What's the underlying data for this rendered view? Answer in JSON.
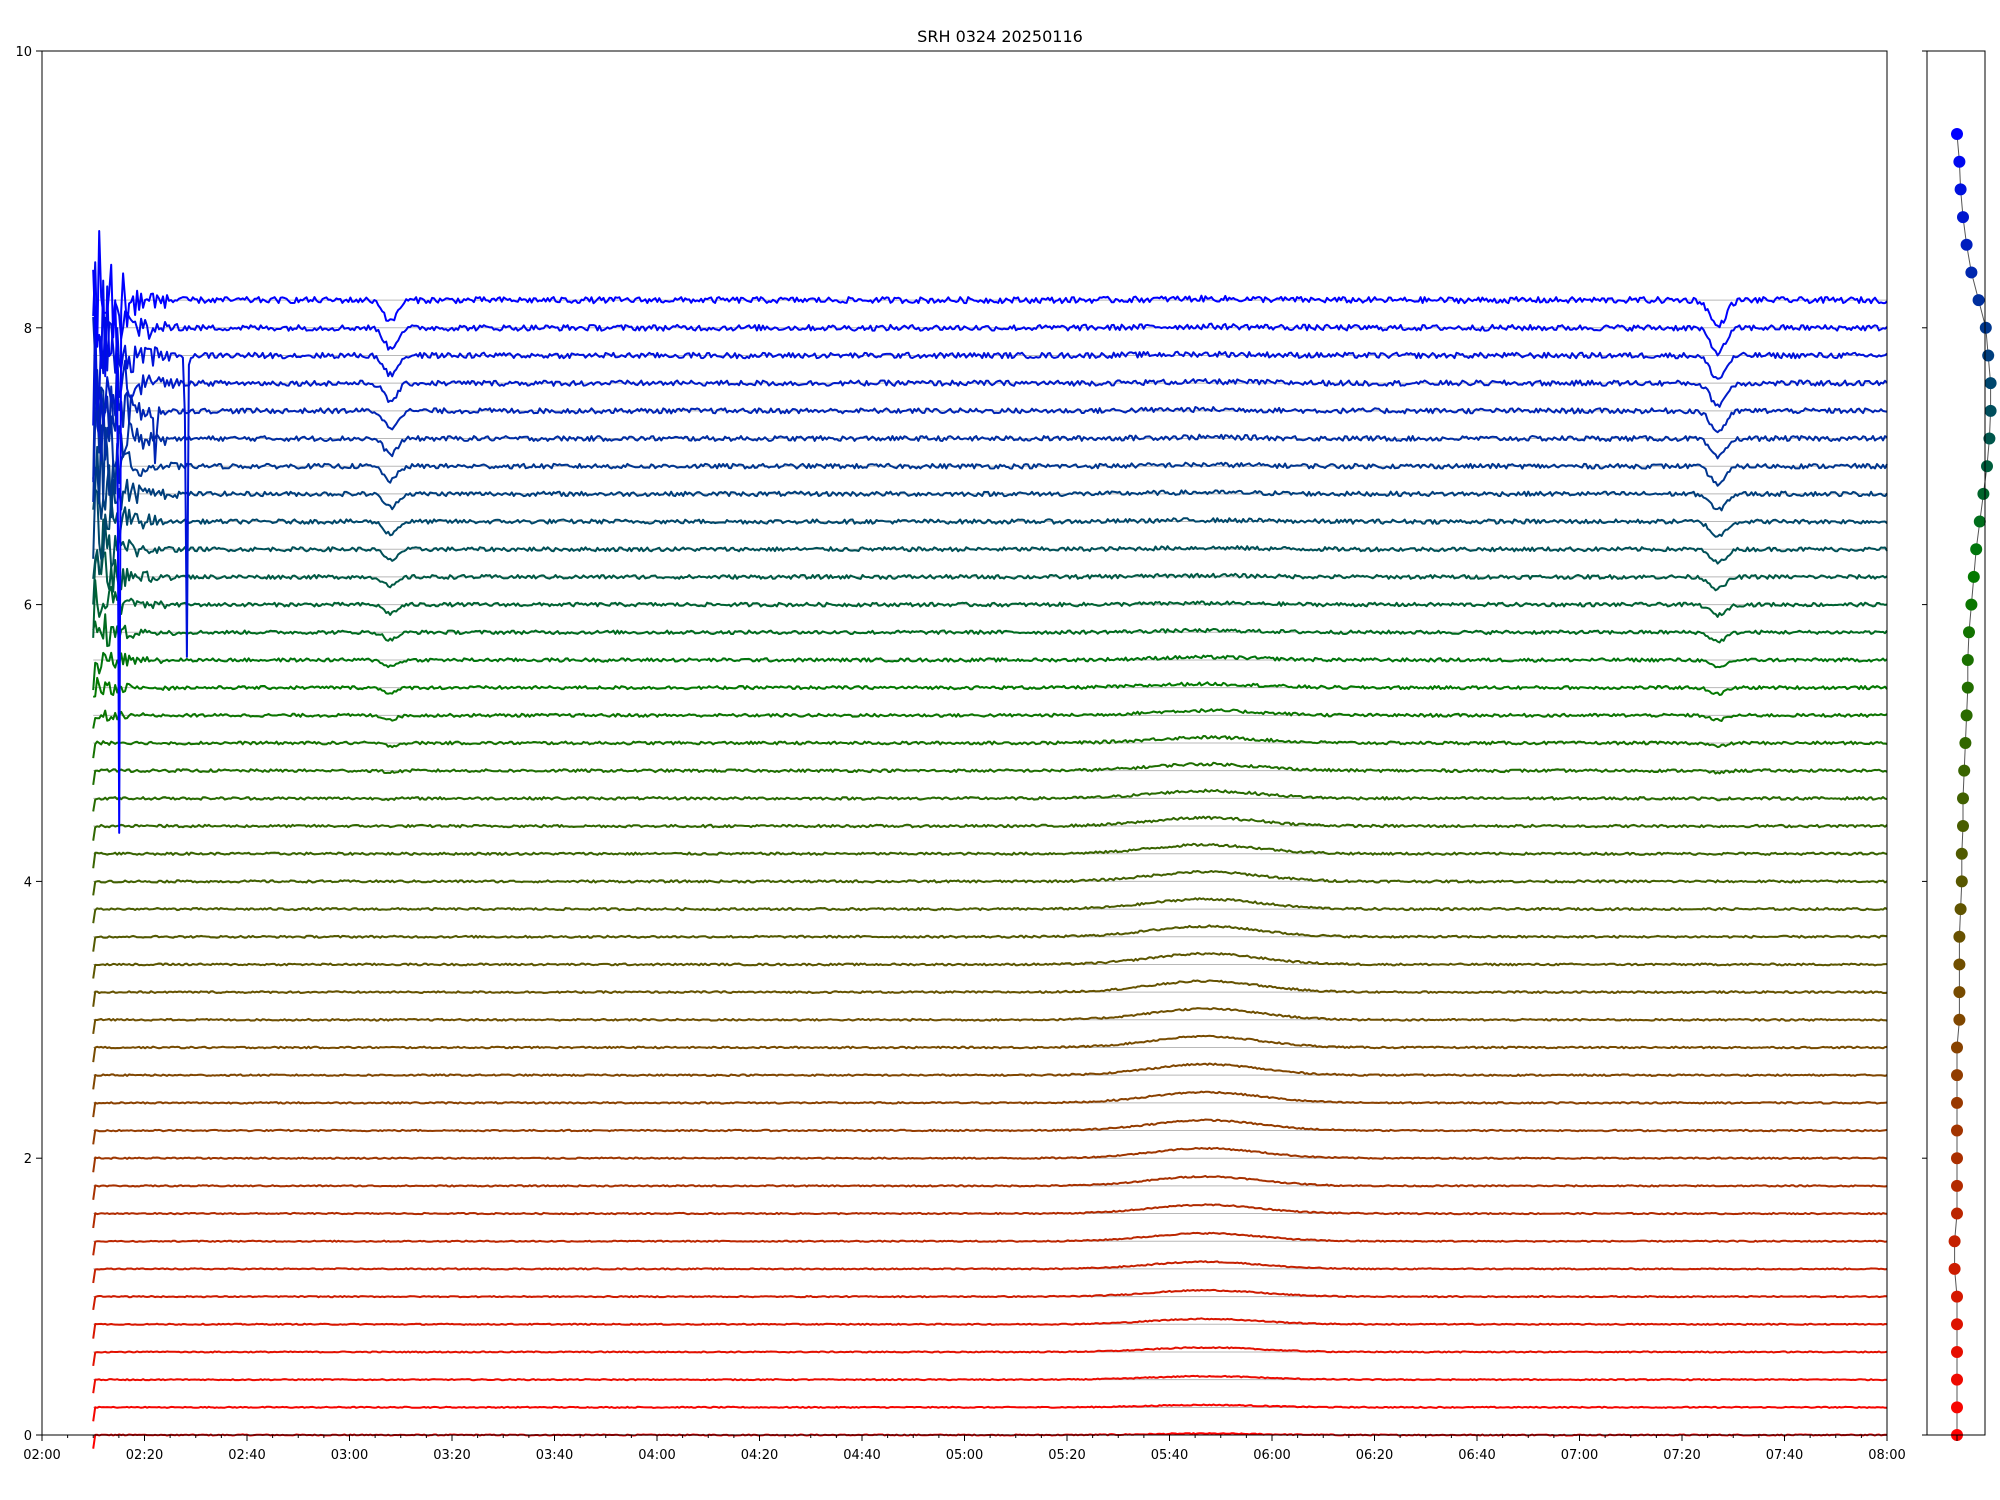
{
  "chart_data": [
    {
      "type": "line",
      "title": "SRH 0324 20250116",
      "xlabel": "",
      "ylabel": "",
      "x_range": [
        "02:00",
        "08:00"
      ],
      "xlim_hours": [
        2.0,
        8.0
      ],
      "ylim": [
        0,
        10
      ],
      "x_ticks": [
        "02:00",
        "02:20",
        "02:40",
        "03:00",
        "03:20",
        "03:40",
        "04:00",
        "04:20",
        "04:40",
        "05:00",
        "05:20",
        "05:40",
        "06:00",
        "06:20",
        "06:40",
        "07:00",
        "07:20",
        "07:40",
        "08:00"
      ],
      "y_ticks": [
        "0",
        "2",
        "4",
        "6",
        "8",
        "10"
      ],
      "grid": "horizontal baseline per series",
      "legend": "none",
      "series_count": 42,
      "series_spacing": 0.2,
      "series_offsets": [
        0.0,
        0.2,
        0.4,
        0.6,
        0.8,
        1.0,
        1.2,
        1.4,
        1.6,
        1.8,
        2.0,
        2.2,
        2.4,
        2.6,
        2.8,
        3.0,
        3.2,
        3.4,
        3.6,
        3.8,
        4.0,
        4.2,
        4.4,
        4.6,
        4.8,
        5.0,
        5.2,
        5.4,
        5.6,
        5.8,
        6.0,
        6.2,
        6.4,
        6.6,
        6.8,
        7.0,
        7.2,
        7.4,
        7.6,
        7.8,
        8.0,
        8.2
      ],
      "data_start": "02:10",
      "data_end": "08:00",
      "color_gradient": [
        "#ff0000",
        "#7a4a00",
        "#007a00",
        "#0000ff"
      ],
      "features": {
        "event_bump_center": "05:47",
        "dip_0308": "03:08",
        "dip_0727": "07:27",
        "spike_0315_min_value": 4.0,
        "spike_0228_min_value": 5.36,
        "spike_0222_min_value": 6.9
      }
    },
    {
      "type": "scatter",
      "title": "",
      "ylim": [
        0,
        10
      ],
      "points": [
        {
          "x": 0.0,
          "y": 0.0
        },
        {
          "x": 0.0,
          "y": 0.2
        },
        {
          "x": 0.0,
          "y": 0.4
        },
        {
          "x": 0.0,
          "y": 0.6
        },
        {
          "x": 0.0,
          "y": 0.8
        },
        {
          "x": 0.0,
          "y": 1.0
        },
        {
          "x": -0.1,
          "y": 1.2
        },
        {
          "x": -0.1,
          "y": 1.4
        },
        {
          "x": 0.0,
          "y": 1.6
        },
        {
          "x": 0.0,
          "y": 1.8
        },
        {
          "x": 0.0,
          "y": 2.0
        },
        {
          "x": 0.0,
          "y": 2.2
        },
        {
          "x": 0.0,
          "y": 2.4
        },
        {
          "x": 0.0,
          "y": 2.6
        },
        {
          "x": 0.0,
          "y": 2.8
        },
        {
          "x": 0.1,
          "y": 3.0
        },
        {
          "x": 0.1,
          "y": 3.2
        },
        {
          "x": 0.1,
          "y": 3.4
        },
        {
          "x": 0.1,
          "y": 3.6
        },
        {
          "x": 0.15,
          "y": 3.8
        },
        {
          "x": 0.2,
          "y": 4.0
        },
        {
          "x": 0.2,
          "y": 4.2
        },
        {
          "x": 0.25,
          "y": 4.4
        },
        {
          "x": 0.25,
          "y": 4.6
        },
        {
          "x": 0.3,
          "y": 4.8
        },
        {
          "x": 0.35,
          "y": 5.0
        },
        {
          "x": 0.4,
          "y": 5.2
        },
        {
          "x": 0.45,
          "y": 5.4
        },
        {
          "x": 0.45,
          "y": 5.6
        },
        {
          "x": 0.5,
          "y": 5.8
        },
        {
          "x": 0.6,
          "y": 6.0
        },
        {
          "x": 0.7,
          "y": 6.2
        },
        {
          "x": 0.8,
          "y": 6.4
        },
        {
          "x": 0.95,
          "y": 6.6
        },
        {
          "x": 1.1,
          "y": 6.8
        },
        {
          "x": 1.25,
          "y": 7.0
        },
        {
          "x": 1.35,
          "y": 7.2
        },
        {
          "x": 1.4,
          "y": 7.4
        },
        {
          "x": 1.4,
          "y": 7.6
        },
        {
          "x": 1.3,
          "y": 7.8
        },
        {
          "x": 1.2,
          "y": 8.0
        },
        {
          "x": 0.9,
          "y": 8.2
        },
        {
          "x": 0.6,
          "y": 8.4
        },
        {
          "x": 0.4,
          "y": 8.6
        },
        {
          "x": 0.25,
          "y": 8.8
        },
        {
          "x": 0.15,
          "y": 9.0
        },
        {
          "x": 0.1,
          "y": 9.2
        },
        {
          "x": 0.0,
          "y": 9.4
        }
      ]
    }
  ]
}
